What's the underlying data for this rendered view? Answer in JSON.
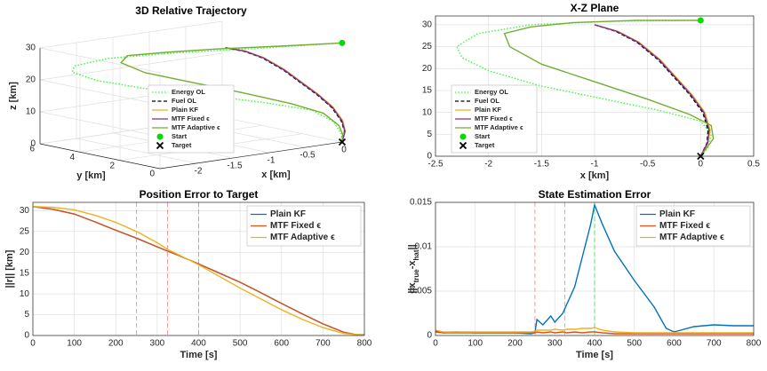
{
  "chart_data": [
    {
      "type": "line3d",
      "title": "3D Relative Trajectory",
      "x_label": "x [km]",
      "y_label": "y [km]",
      "z_label": "z [km]",
      "xlim": [
        -2.5,
        0
      ],
      "ylim": [
        0,
        6
      ],
      "zlim": [
        0,
        30
      ],
      "xticks": [
        -2,
        -1.5,
        -1,
        -0.5,
        0
      ],
      "yticks": [
        0,
        2,
        4,
        6
      ],
      "zticks": [
        0,
        10,
        20,
        30
      ],
      "grid": true,
      "legend": "south",
      "series": [
        {
          "name": "Energy OL",
          "color": "#33ff33",
          "style": "dotted",
          "x": [
            0,
            -0.8,
            -1.6,
            -2.1,
            -2.3,
            -2.25,
            -2.0,
            -1.5,
            -0.9,
            -0.4,
            0,
            0.1,
            0.07,
            0
          ],
          "y": [
            0,
            1,
            2.5,
            4,
            5,
            5.3,
            5,
            4.5,
            3.5,
            2.5,
            1.5,
            0.8,
            0.3,
            0
          ],
          "z": [
            31,
            30.8,
            30,
            28,
            25,
            22.5,
            19.5,
            16,
            13,
            10.5,
            8,
            5,
            2,
            0
          ]
        },
        {
          "name": "Fuel OL",
          "color": "#000000",
          "style": "dashed",
          "x": [
            -1,
            -0.8,
            -0.6,
            -0.4,
            -0.25,
            -0.1,
            0.02,
            0.07,
            0.06,
            0
          ],
          "y": [
            2.2,
            2,
            1.8,
            1.5,
            1.2,
            0.9,
            0.6,
            0.3,
            0.1,
            0
          ],
          "z": [
            30,
            28.5,
            26,
            22,
            18,
            14,
            10,
            6,
            3,
            0
          ]
        },
        {
          "name": "Plain KF",
          "color": "#edb120",
          "style": "solid",
          "x": [
            -1,
            -0.78,
            -0.58,
            -0.38,
            -0.23,
            -0.08,
            0.04,
            0.09,
            0.07,
            0
          ],
          "y": [
            2.2,
            2,
            1.8,
            1.5,
            1.2,
            0.9,
            0.6,
            0.3,
            0.1,
            0
          ],
          "z": [
            30,
            28.5,
            26,
            22,
            18,
            14,
            10,
            6,
            3,
            0
          ]
        },
        {
          "name": "MTF Fixed ϵ",
          "color": "#7e2f8e",
          "style": "solid",
          "x": [
            -1,
            -0.79,
            -0.59,
            -0.39,
            -0.24,
            -0.09,
            0.03,
            0.08,
            0.065,
            0
          ],
          "y": [
            2.2,
            2,
            1.8,
            1.5,
            1.2,
            0.9,
            0.6,
            0.3,
            0.1,
            0
          ],
          "z": [
            30,
            28.5,
            26,
            22,
            18,
            14,
            10,
            6,
            3,
            0
          ]
        },
        {
          "name": "MTF Adaptive ϵ",
          "color": "#77ac30",
          "style": "solid",
          "x": [
            0,
            -0.6,
            -1.2,
            -1.6,
            -1.85,
            -1.8,
            -1.5,
            -1.0,
            -0.5,
            -0.1,
            0.1,
            0.12,
            0.06,
            0
          ],
          "y": [
            0,
            0.8,
            2,
            3,
            4,
            4.5,
            4.4,
            4,
            3.2,
            2.2,
            1.3,
            0.6,
            0.2,
            0
          ],
          "z": [
            31,
            31,
            30.5,
            29.5,
            28,
            25,
            21,
            17,
            13,
            9.5,
            7,
            4,
            2,
            0
          ]
        }
      ],
      "points": [
        {
          "name": "Start",
          "color": "#00dd00",
          "marker": "circle",
          "x": 0,
          "y": 0,
          "z": 31
        },
        {
          "name": "Target",
          "color": "#000000",
          "marker": "x",
          "x": 0,
          "y": 0,
          "z": 0
        }
      ]
    },
    {
      "type": "line",
      "title": "X-Z Plane",
      "x_label": "x [km]",
      "xlim": [
        -2.5,
        0.5
      ],
      "ylim": [
        0,
        32
      ],
      "xticks": [
        -2.5,
        -2,
        -1.5,
        -1,
        -0.5,
        0,
        0.5
      ],
      "yticks": [
        0,
        5,
        10,
        15,
        20,
        25,
        30
      ],
      "grid": true,
      "legend": "southwest",
      "series": [
        {
          "name": "Energy OL",
          "color": "#33ff33",
          "style": "dotted",
          "x": [
            0,
            -0.8,
            -1.6,
            -2.1,
            -2.3,
            -2.25,
            -2.0,
            -1.5,
            -0.9,
            -0.4,
            0,
            0.1,
            0.07,
            0
          ],
          "values": [
            31,
            30.8,
            30,
            28,
            25,
            22.5,
            19.5,
            16,
            13,
            10.5,
            8,
            5,
            2,
            0
          ]
        },
        {
          "name": "Fuel OL",
          "color": "#000000",
          "style": "dashed",
          "x": [
            -1,
            -0.8,
            -0.6,
            -0.4,
            -0.25,
            -0.1,
            0.02,
            0.07,
            0.06,
            0
          ],
          "values": [
            30,
            28.5,
            26,
            22,
            18,
            14,
            10,
            6,
            3,
            0
          ]
        },
        {
          "name": "Plain KF",
          "color": "#edb120",
          "style": "solid",
          "x": [
            -1,
            -0.78,
            -0.58,
            -0.38,
            -0.23,
            -0.08,
            0.04,
            0.09,
            0.07,
            0
          ],
          "values": [
            30,
            28.5,
            26,
            22,
            18,
            14,
            10,
            6,
            3,
            0
          ]
        },
        {
          "name": "MTF Fixed ϵ",
          "color": "#7e2f8e",
          "style": "solid",
          "x": [
            -1,
            -0.79,
            -0.59,
            -0.39,
            -0.24,
            -0.09,
            0.03,
            0.08,
            0.065,
            0
          ],
          "values": [
            30,
            28.5,
            26,
            22,
            18,
            14,
            10,
            6,
            3,
            0
          ]
        },
        {
          "name": "MTF Adaptive ϵ",
          "color": "#77ac30",
          "style": "solid",
          "x": [
            0,
            -0.6,
            -1.2,
            -1.6,
            -1.85,
            -1.8,
            -1.5,
            -1.0,
            -0.5,
            -0.1,
            0.1,
            0.12,
            0.06,
            0
          ],
          "values": [
            31,
            31,
            30.5,
            29.5,
            28,
            25,
            21,
            17,
            13,
            9.5,
            7,
            4,
            2,
            0
          ]
        }
      ],
      "points": [
        {
          "name": "Start",
          "color": "#00dd00",
          "marker": "circle",
          "x": 0,
          "y": 31
        },
        {
          "name": "Target",
          "color": "#000000",
          "marker": "x",
          "x": 0,
          "y": 0
        }
      ]
    },
    {
      "type": "line",
      "title": "Position Error to Target",
      "x_label": "Time [s]",
      "y_label": "||r|| [km]",
      "xlim": [
        0,
        800
      ],
      "ylim": [
        0,
        32
      ],
      "xticks": [
        0,
        100,
        200,
        300,
        400,
        500,
        600,
        700,
        800
      ],
      "yticks": [
        0,
        5,
        10,
        15,
        20,
        25,
        30
      ],
      "grid": true,
      "legend": "northeast",
      "vlines": [
        {
          "x": 250,
          "color": "#ff9999"
        },
        {
          "x": 325,
          "color": "#ff9999"
        },
        {
          "x": 400,
          "color": "#66dd66"
        }
      ],
      "series": [
        {
          "name": "Plain KF",
          "color": "#0072bd",
          "style": "solid",
          "x": [
            0,
            50,
            100,
            150,
            200,
            250,
            300,
            325,
            350,
            400,
            450,
            500,
            550,
            600,
            650,
            700,
            750,
            780,
            800
          ],
          "values": [
            31,
            30.3,
            29.2,
            27.3,
            25.3,
            23.4,
            21.3,
            20.3,
            19.3,
            17.2,
            15,
            12.8,
            10.3,
            7.7,
            5.2,
            2.8,
            0.8,
            0.2,
            0.2
          ]
        },
        {
          "name": "MTF Fixed ϵ",
          "color": "#d95319",
          "style": "solid",
          "x": [
            0,
            50,
            100,
            150,
            200,
            250,
            300,
            325,
            350,
            400,
            450,
            500,
            550,
            600,
            650,
            700,
            750,
            780,
            800
          ],
          "values": [
            31,
            30.3,
            29.2,
            27.3,
            25.3,
            23.4,
            21.3,
            20.3,
            19.3,
            17.2,
            15,
            12.8,
            10.3,
            7.7,
            5.2,
            2.8,
            0.8,
            0.2,
            0.2
          ]
        },
        {
          "name": "MTF Adaptive ϵ",
          "color": "#edb120",
          "style": "solid",
          "x": [
            0,
            50,
            100,
            150,
            200,
            250,
            300,
            325,
            350,
            400,
            450,
            500,
            550,
            600,
            650,
            700,
            750,
            780,
            800
          ],
          "values": [
            31,
            30.8,
            30.2,
            28.9,
            27.2,
            25,
            22.3,
            20.7,
            19.5,
            17,
            14.2,
            11.4,
            8.8,
            6.2,
            3.9,
            1.9,
            0.5,
            0.2,
            0.2
          ]
        }
      ]
    },
    {
      "type": "line",
      "title": "State Estimation Error",
      "x_label": "Time [s]",
      "y_label": [
        "||x",
        "true",
        "-x",
        "hat",
        "||"
      ],
      "xlim": [
        0,
        800
      ],
      "ylim": [
        0,
        0.015
      ],
      "xticks": [
        0,
        100,
        200,
        300,
        400,
        500,
        600,
        700,
        800
      ],
      "yticks": [
        0,
        0.005,
        0.01,
        0.015
      ],
      "grid": true,
      "legend": "northeast",
      "vlines": [
        {
          "x": 250,
          "color": "#ff9999"
        },
        {
          "x": 325,
          "color": "#ff9999"
        },
        {
          "x": 400,
          "color": "#66dd66"
        }
      ],
      "series": [
        {
          "name": "Plain KF",
          "color": "#0072bd",
          "style": "solid",
          "x": [
            0,
            20,
            50,
            100,
            150,
            200,
            240,
            250,
            255,
            270,
            290,
            300,
            320,
            330,
            350,
            370,
            390,
            400,
            420,
            450,
            500,
            550,
            580,
            600,
            650,
            700,
            750,
            800
          ],
          "values": [
            0.0005,
            0.0003,
            0.0004,
            0.0003,
            0.0003,
            0.0003,
            0.0002,
            0.0003,
            0.0018,
            0.0012,
            0.0022,
            0.0015,
            0.0025,
            0.0035,
            0.0055,
            0.009,
            0.0125,
            0.0147,
            0.0125,
            0.0095,
            0.0062,
            0.0032,
            0.0008,
            0.0004,
            0.001,
            0.0012,
            0.0011,
            0.0011
          ]
        },
        {
          "name": "MTF Fixed ϵ",
          "color": "#d95319",
          "style": "solid",
          "x": [
            0,
            20,
            50,
            100,
            150,
            200,
            240,
            250,
            255,
            270,
            290,
            300,
            320,
            330,
            350,
            370,
            390,
            400,
            420,
            450,
            500,
            550,
            580,
            600,
            650,
            700,
            750,
            800
          ],
          "values": [
            0.0004,
            0.0003,
            0.0003,
            0.0003,
            0.0003,
            0.0003,
            0.0003,
            0.0003,
            0.0004,
            0.0003,
            0.0004,
            0.0003,
            0.0004,
            0.0003,
            0.0004,
            0.0003,
            0.0004,
            0.0004,
            0.0003,
            0.0002,
            0.0002,
            0.0002,
            0.0002,
            0.0002,
            0.0002,
            0.0002,
            0.0002,
            0.0002
          ]
        },
        {
          "name": "MTF Adaptive ϵ",
          "color": "#edb120",
          "style": "solid",
          "x": [
            0,
            20,
            50,
            100,
            150,
            200,
            240,
            250,
            255,
            270,
            290,
            300,
            320,
            330,
            350,
            370,
            390,
            400,
            420,
            450,
            500,
            550,
            580,
            600,
            650,
            700,
            750,
            800
          ],
          "values": [
            0.0006,
            0.0004,
            0.0004,
            0.0004,
            0.0004,
            0.0004,
            0.0004,
            0.0005,
            0.0006,
            0.0006,
            0.0006,
            0.0007,
            0.0006,
            0.0007,
            0.0007,
            0.0008,
            0.0008,
            0.0009,
            0.0006,
            0.0004,
            0.0003,
            0.0003,
            0.0003,
            0.0003,
            0.0003,
            0.0003,
            0.0003,
            0.0003
          ]
        }
      ]
    }
  ]
}
